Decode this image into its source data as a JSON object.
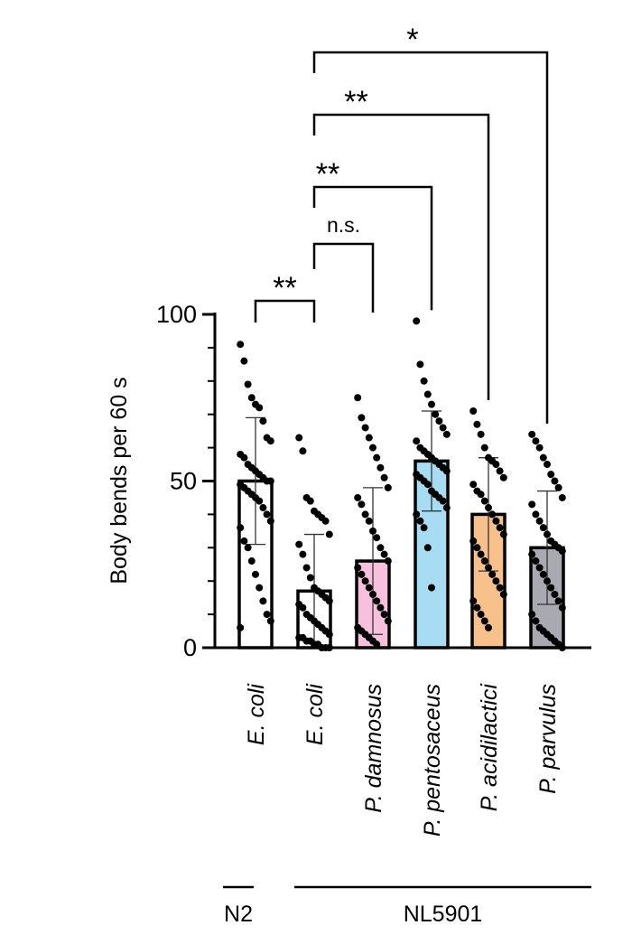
{
  "chart_data": {
    "type": "bar",
    "ylabel": "Body bends per 60 s",
    "ylim": [
      0,
      100
    ],
    "yticks": [
      0,
      50,
      100
    ],
    "ytick_labels": [
      "0",
      "50",
      "100"
    ],
    "categories": [
      "E. coli",
      "E. coli",
      "P. damnosus",
      "P. pentosaceus",
      "P. acidilactici",
      "P. parvulus"
    ],
    "bar_colors": [
      "#ffffff",
      "#ffffff",
      "#f7c1de",
      "#a8dcf2",
      "#f8c08b",
      "#a9a9b2"
    ],
    "means": [
      50,
      17,
      26,
      56,
      40,
      30
    ],
    "sd": [
      19,
      17,
      22,
      15,
      17,
      17
    ],
    "points": [
      [
        91,
        86,
        79,
        75,
        73,
        72,
        68,
        63,
        62,
        58,
        57,
        55,
        54,
        53,
        52,
        51,
        50,
        50,
        49,
        48,
        47,
        46,
        45,
        44,
        42,
        40,
        38,
        36,
        32,
        30,
        26,
        22,
        18,
        14,
        10,
        8,
        6
      ],
      [
        63,
        59,
        45,
        44,
        41,
        40,
        39,
        38,
        34,
        31,
        28,
        24,
        21,
        18,
        17,
        16,
        15,
        14,
        13,
        12,
        10,
        9,
        8,
        7,
        6,
        5,
        4,
        3,
        3,
        2,
        2,
        1,
        1,
        0,
        0,
        0
      ],
      [
        75,
        69,
        66,
        63,
        60,
        57,
        54,
        51,
        48,
        45,
        43,
        40,
        38,
        35,
        33,
        30,
        28,
        26,
        24,
        22,
        20,
        18,
        16,
        14,
        12,
        10,
        8,
        6,
        5,
        4,
        3,
        2,
        1
      ],
      [
        98,
        85,
        80,
        76,
        73,
        70,
        68,
        66,
        64,
        62,
        60,
        59,
        58,
        57,
        56,
        55,
        54,
        53,
        52,
        51,
        50,
        49,
        47,
        46,
        45,
        44,
        42,
        40,
        38,
        36,
        30,
        18
      ],
      [
        71,
        67,
        64,
        60,
        57,
        56,
        55,
        53,
        51,
        49,
        47,
        46,
        44,
        42,
        40,
        38,
        36,
        34,
        32,
        30,
        28,
        26,
        24,
        22,
        20,
        18,
        16,
        14,
        12,
        10,
        8,
        6
      ],
      [
        64,
        62,
        60,
        57,
        55,
        52,
        50,
        48,
        45,
        43,
        40,
        38,
        36,
        34,
        32,
        31,
        30,
        29,
        28,
        26,
        24,
        22,
        20,
        18,
        16,
        14,
        12,
        10,
        8,
        6,
        5,
        4,
        3,
        2,
        1,
        0
      ]
    ],
    "group_labels": [
      {
        "label": "N2",
        "from": 0,
        "to": 0
      },
      {
        "label": "NL5901",
        "from": 1,
        "to": 5
      }
    ],
    "significance": [
      {
        "from": 0,
        "to": 1,
        "label": "**"
      },
      {
        "from": 1,
        "to": 2,
        "label": "n.s."
      },
      {
        "from": 1,
        "to": 3,
        "label": "**"
      },
      {
        "from": 1,
        "to": 4,
        "label": "**"
      },
      {
        "from": 1,
        "to": 5,
        "label": "*"
      }
    ]
  }
}
